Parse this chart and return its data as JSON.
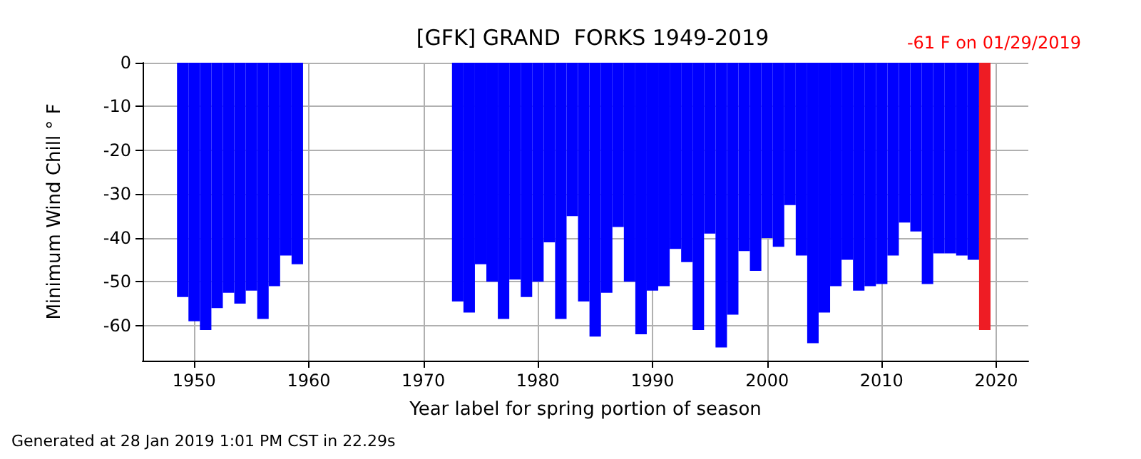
{
  "chart_data": {
    "type": "bar",
    "title": "[GFK] GRAND  FORKS 1949-2019",
    "xlabel": "Year label for spring portion of season",
    "ylabel": "Minimum Wind Chill ° F",
    "annotations": [
      "-61 F on 01/29/2019",
      "Generated at 28 Jan 2019 1:01 PM CST in 22.29s"
    ],
    "x": [
      1949,
      1950,
      1951,
      1952,
      1953,
      1954,
      1955,
      1956,
      1957,
      1958,
      1959,
      1973,
      1974,
      1975,
      1976,
      1977,
      1978,
      1979,
      1980,
      1981,
      1982,
      1983,
      1984,
      1985,
      1986,
      1987,
      1988,
      1989,
      1990,
      1991,
      1992,
      1993,
      1994,
      1995,
      1996,
      1997,
      1998,
      1999,
      2000,
      2001,
      2002,
      2003,
      2004,
      2005,
      2006,
      2007,
      2008,
      2009,
      2010,
      2011,
      2012,
      2013,
      2014,
      2015,
      2016,
      2017,
      2018,
      2019
    ],
    "values": [
      -53.5,
      -59,
      -61,
      -56,
      -52.5,
      -55,
      -52,
      -58.5,
      -51,
      -44,
      -46,
      -54.5,
      -57,
      -46,
      -50,
      -58.5,
      -49.5,
      -53.5,
      -50,
      -41,
      -58.5,
      -35,
      -54.5,
      -62.5,
      -52.5,
      -37.5,
      -50,
      -62,
      -52,
      -51,
      -42.5,
      -45.5,
      -61,
      -39,
      -65,
      -57.5,
      -43,
      -47.5,
      -40,
      -42,
      -32.5,
      -44,
      -64,
      -57,
      -51,
      -45,
      -52,
      -51,
      -50.5,
      -44,
      -36.5,
      -38.5,
      -50.5,
      -43.5,
      -43.5,
      -44,
      -45,
      -61
    ],
    "colors": [
      "#0000ff",
      "#0000ff",
      "#0000ff",
      "#0000ff",
      "#0000ff",
      "#0000ff",
      "#0000ff",
      "#0000ff",
      "#0000ff",
      "#0000ff",
      "#0000ff",
      "#0000ff",
      "#0000ff",
      "#0000ff",
      "#0000ff",
      "#0000ff",
      "#0000ff",
      "#0000ff",
      "#0000ff",
      "#0000ff",
      "#0000ff",
      "#0000ff",
      "#0000ff",
      "#0000ff",
      "#0000ff",
      "#0000ff",
      "#0000ff",
      "#0000ff",
      "#0000ff",
      "#0000ff",
      "#0000ff",
      "#0000ff",
      "#0000ff",
      "#0000ff",
      "#0000ff",
      "#0000ff",
      "#0000ff",
      "#0000ff",
      "#0000ff",
      "#0000ff",
      "#0000ff",
      "#0000ff",
      "#0000ff",
      "#0000ff",
      "#0000ff",
      "#0000ff",
      "#0000ff",
      "#0000ff",
      "#0000ff",
      "#0000ff",
      "#0000ff",
      "#0000ff",
      "#0000ff",
      "#0000ff",
      "#0000ff",
      "#0000ff",
      "#0000ff",
      "#ee1c24"
    ],
    "xlim": [
      1945.5,
      2022.8
    ],
    "xticks": [
      1950,
      1960,
      1970,
      1980,
      1990,
      2000,
      2010,
      2020
    ],
    "ylim": [
      -68,
      0
    ],
    "yticks": [
      0,
      -10,
      -20,
      -30,
      -40,
      -50,
      -60
    ],
    "grid": true
  }
}
